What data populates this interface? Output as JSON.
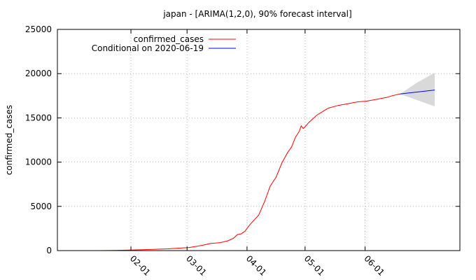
{
  "colors": {
    "background": "#ffffff",
    "confirmed_series": "#ff0000",
    "forecast_series": "#0000ff",
    "interval_fill": "#d9d9d9",
    "grid": "#b8b8b8"
  },
  "chart_data": {
    "type": "line",
    "title": "japan -  [ARIMA(1,2,0), 90% forecast interval]",
    "xlabel": "",
    "ylabel": "confirmed_cases",
    "x_axis": {
      "unit": "days since 2020-01-01",
      "range": [
        -7,
        201
      ],
      "ticks": [
        {
          "label": "02-01",
          "value": 31
        },
        {
          "label": "03-01",
          "value": 60
        },
        {
          "label": "04-01",
          "value": 91
        },
        {
          "label": "05-01",
          "value": 121
        },
        {
          "label": "06-01",
          "value": 152
        }
      ]
    },
    "y_axis": {
      "range": [
        0,
        25000
      ],
      "ticks": [
        0,
        5000,
        10000,
        15000,
        20000,
        25000
      ]
    },
    "grid": true,
    "legend": {
      "position": "top-left",
      "entries": [
        "confirmed_cases",
        "Conditional on 2020-06-19"
      ]
    },
    "series": [
      {
        "name": "confirmed_cases",
        "color": "#ff0000",
        "x": [
          14,
          23,
          30,
          40,
          50,
          55,
          61,
          65,
          68,
          72,
          77,
          81,
          84,
          86,
          88,
          90,
          92,
          94,
          97,
          100,
          103,
          106,
          109,
          112,
          114,
          116,
          118,
          119,
          120,
          121,
          123,
          125,
          127,
          130,
          133,
          138,
          143,
          148,
          153,
          158,
          163,
          166,
          170
        ],
        "values": [
          0,
          25,
          60,
          120,
          200,
          270,
          350,
          480,
          600,
          800,
          900,
          1100,
          1400,
          1800,
          1900,
          2200,
          2800,
          3300,
          4000,
          5500,
          7300,
          8300,
          9900,
          11100,
          11700,
          12800,
          13500,
          14100,
          13800,
          14000,
          14500,
          14900,
          15300,
          15700,
          16100,
          16400,
          16600,
          16800,
          16900,
          17100,
          17300,
          17500,
          17700
        ]
      },
      {
        "name": "Conditional on 2020-06-19",
        "color": "#0000ff",
        "x": [
          170,
          188
        ],
        "values": [
          17700,
          18150
        ]
      }
    ],
    "forecast_interval": {
      "x": [
        170,
        179,
        188
      ],
      "upper": [
        17700,
        19000,
        20100
      ],
      "lower": [
        17700,
        17000,
        16300
      ]
    }
  }
}
